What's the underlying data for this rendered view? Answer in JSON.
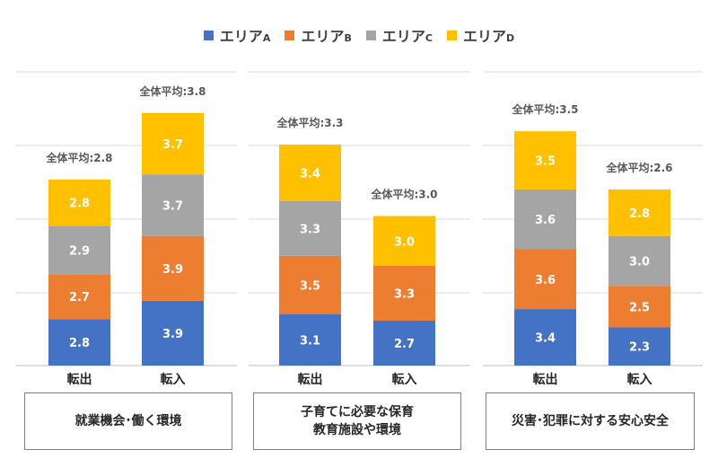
{
  "chart_data": [
    {
      "type": "bar",
      "stacked": true,
      "panel_label": "就業機会･働く環境",
      "categories": [
        "転出",
        "転入"
      ],
      "totals_label": [
        "全体平均:2.8",
        "全体平均:3.8"
      ],
      "series": [
        {
          "name": "エリアA",
          "color": "#4472c4",
          "values": [
            2.8,
            3.9
          ]
        },
        {
          "name": "エリアB",
          "color": "#ed7d31",
          "values": [
            2.7,
            3.9
          ]
        },
        {
          "name": "エリアC",
          "color": "#a5a5a5",
          "values": [
            2.9,
            3.7
          ]
        },
        {
          "name": "エリアD",
          "color": "#ffc000",
          "values": [
            2.8,
            3.7
          ]
        }
      ],
      "grid": true
    },
    {
      "type": "bar",
      "stacked": true,
      "panel_label": "子育てに必要な保育\n教育施設や環境",
      "categories": [
        "転出",
        "転入"
      ],
      "totals_label": [
        "全体平均:3.3",
        "全体平均:3.0"
      ],
      "series": [
        {
          "name": "エリアA",
          "color": "#4472c4",
          "values": [
            3.1,
            2.7
          ]
        },
        {
          "name": "エリアB",
          "color": "#ed7d31",
          "values": [
            3.5,
            3.3
          ]
        },
        {
          "name": "エリアC",
          "color": "#a5a5a5",
          "values": [
            3.3,
            null
          ]
        },
        {
          "name": "エリアD",
          "color": "#ffc000",
          "values": [
            3.4,
            3.0
          ]
        }
      ],
      "grid": true
    },
    {
      "type": "bar",
      "stacked": true,
      "panel_label": "災害･犯罪に対する安心安全",
      "categories": [
        "転出",
        "転入"
      ],
      "totals_label": [
        "全体平均:3.5",
        "全体平均:2.6"
      ],
      "series": [
        {
          "name": "エリアA",
          "color": "#4472c4",
          "values": [
            3.4,
            2.3
          ]
        },
        {
          "name": "エリアB",
          "color": "#ed7d31",
          "values": [
            3.6,
            2.5
          ]
        },
        {
          "name": "エリアC",
          "color": "#a5a5a5",
          "values": [
            3.6,
            3.0
          ]
        },
        {
          "name": "エリアD",
          "color": "#ffc000",
          "values": [
            3.5,
            2.8
          ]
        }
      ],
      "grid": true
    }
  ],
  "legend": [
    {
      "label": "エリア",
      "suffix": "A",
      "color": "#4472c4"
    },
    {
      "label": "エリア",
      "suffix": "B",
      "color": "#ed7d31"
    },
    {
      "label": "エリア",
      "suffix": "C",
      "color": "#a5a5a5"
    },
    {
      "label": "エリア",
      "suffix": "D",
      "color": "#ffc000"
    }
  ]
}
